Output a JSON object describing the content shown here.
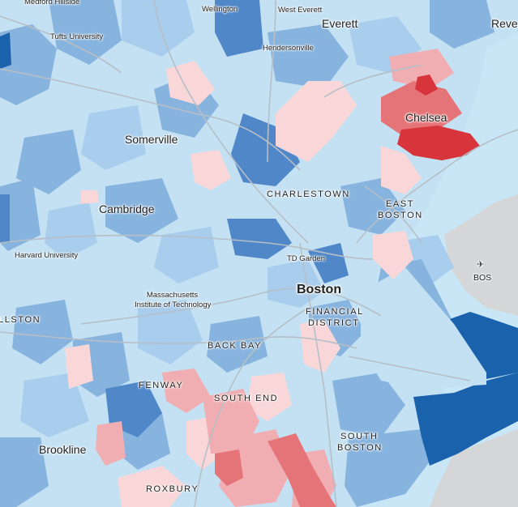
{
  "colors": {
    "water": "#c9e6f6",
    "land_gray": "#d4d6d8",
    "blue_lightest": "#c4e1f3",
    "blue_light": "#a9cdec",
    "blue_mid": "#87b4df",
    "blue_dark": "#4f87c9",
    "blue_darkest": "#1b62ad",
    "red_lightest": "#f9d7d9",
    "red_light": "#f1aeb2",
    "red_mid": "#e57478",
    "red_dark": "#d7343b",
    "road": "#b6bec6"
  },
  "labels": {
    "medford_hillside": "Medford Hillside",
    "wellington": "Wellington",
    "west_everett": "West Everett",
    "everett": "Everett",
    "revere": "Reve",
    "tufts": "Tufts University",
    "hendersonville": "Hendersonville",
    "chelsea": "Chelsea",
    "somerville": "Somerville",
    "charlestown": "CHARLESTOWN",
    "cambridge": "Cambridge",
    "east_boston_1": "EAST",
    "east_boston_2": "BOSTON",
    "harvard": "Harvard University",
    "td_garden": "TD Garden",
    "bos": "BOS",
    "mit_1": "Massachusetts",
    "mit_2": "Institute of Technology",
    "boston": "Boston",
    "financial_1": "FINANCIAL",
    "financial_2": "DISTRICT",
    "allston": "LLSTON",
    "back_bay": "BACK BAY",
    "fenway": "FENWAY",
    "south_end": "SOUTH END",
    "south_boston_1": "SOUTH",
    "south_boston_2": "BOSTON",
    "brookline": "Brookline",
    "roxbury": "ROXBURY"
  },
  "icons": {
    "airport": "airplane-icon"
  }
}
